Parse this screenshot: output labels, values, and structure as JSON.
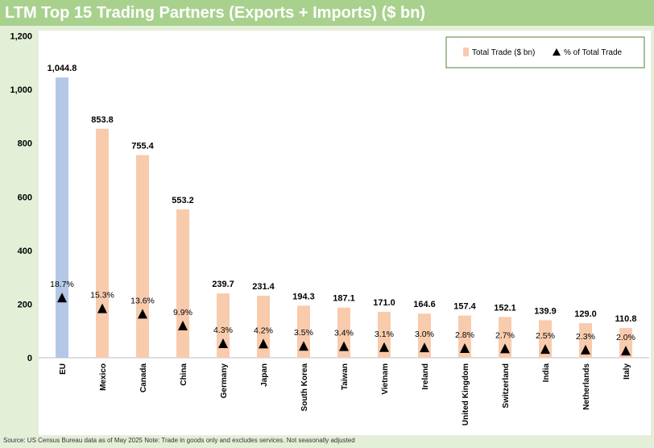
{
  "title": "LTM Top 15 Trading Partners (Exports + Imports) ($ bn)",
  "source": "Source: US Census Bureau data as of May 2025 Note: Trade in goods only and excludes services. Not seasonally adjusted",
  "colors": {
    "bar": "#f8cbad",
    "bar_highlight": "#b4c7e7",
    "marker": "#000000",
    "title_bg": "#a9d18e",
    "outer_bg": "#e4efd8",
    "legend_border": "#548235"
  },
  "chart_data": {
    "type": "bar",
    "title": "LTM Top 15 Trading Partners (Exports + Imports) ($ bn)",
    "xlabel": "",
    "ylabel": "",
    "ylim": [
      0,
      1200
    ],
    "yticks": [
      0,
      200,
      400,
      600,
      800,
      1000,
      1200
    ],
    "ytick_labels": [
      "0",
      "200",
      "400",
      "600",
      "800",
      "1,000",
      "1,200"
    ],
    "grid": false,
    "legend_position": "top-right",
    "categories": [
      "EU",
      "Mexico",
      "Canada",
      "China",
      "Germany",
      "Japan",
      "South Korea",
      "Taiwan",
      "Vietnam",
      "Ireland",
      "United Kingdom",
      "Switzerland",
      "India",
      "Netherlands",
      "Italy"
    ],
    "series": [
      {
        "name": "Total Trade ($ bn)",
        "type": "bar",
        "values": [
          1044.8,
          853.8,
          755.4,
          553.2,
          239.7,
          231.4,
          194.3,
          187.1,
          171.0,
          164.6,
          157.4,
          152.1,
          139.9,
          129.0,
          110.8
        ],
        "labels": [
          "1,044.8",
          "853.8",
          "755.4",
          "553.2",
          "239.7",
          "231.4",
          "194.3",
          "187.1",
          "171.0",
          "164.6",
          "157.4",
          "152.1",
          "139.9",
          "129.0",
          "110.8"
        ]
      },
      {
        "name": "% of Total Trade",
        "type": "scatter",
        "marker": "triangle",
        "values": [
          18.7,
          15.3,
          13.6,
          9.9,
          4.3,
          4.2,
          3.5,
          3.4,
          3.1,
          3.0,
          2.8,
          2.7,
          2.5,
          2.3,
          2.0
        ],
        "labels": [
          "18.7%",
          "15.3%",
          "13.6%",
          "9.9%",
          "4.3%",
          "4.2%",
          "3.5%",
          "3.4%",
          "3.1%",
          "3.0%",
          "2.8%",
          "2.7%",
          "2.5%",
          "2.3%",
          "2.0%"
        ]
      }
    ]
  }
}
